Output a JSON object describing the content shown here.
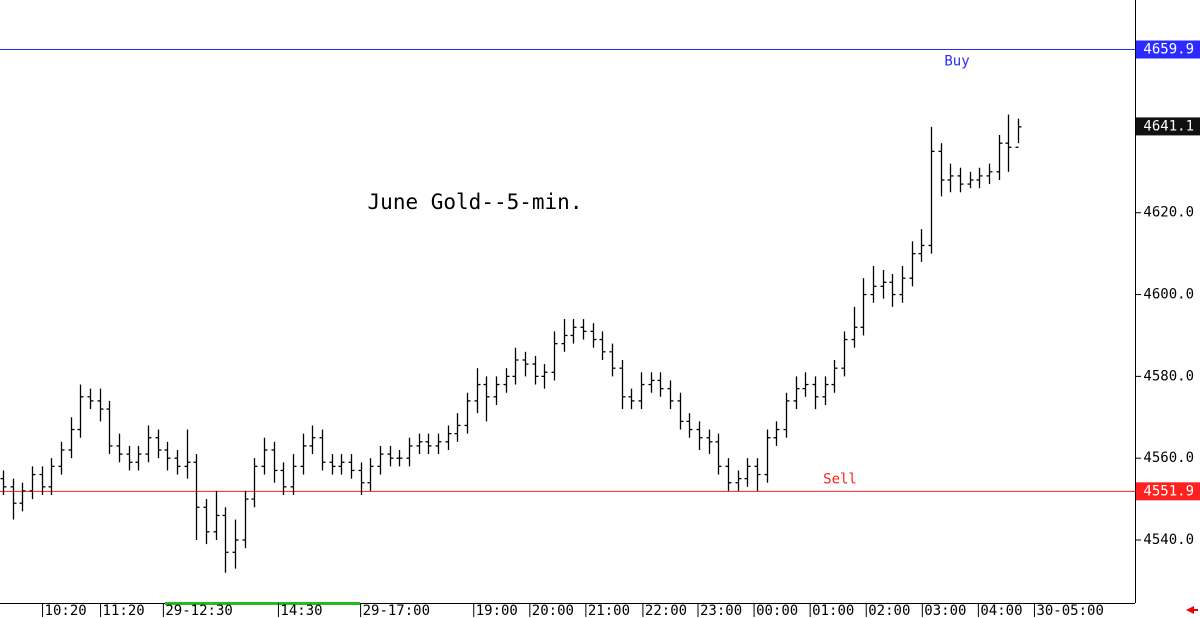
{
  "chart_data": {
    "type": "ohlc",
    "title": "June Gold--5-min.",
    "color": "#000000",
    "open": [
      4555,
      4553,
      4549,
      4552,
      4556,
      4553,
      4558,
      4562,
      4567,
      4575,
      4574,
      4572,
      4563,
      4561,
      4559,
      4561,
      4565,
      4562,
      4560,
      4558,
      4559,
      4548,
      4542,
      4546,
      4537,
      4540,
      4550,
      4558,
      4562,
      4557,
      4553,
      4558,
      4563,
      4565,
      4559,
      4558,
      4559,
      4557,
      4554,
      4558,
      4561,
      4560,
      4560,
      4563,
      4564,
      4563,
      4564,
      4566,
      4568,
      4574,
      4578,
      4575,
      4578,
      4580,
      4584,
      4583,
      4580,
      4581,
      4588,
      4590,
      4592,
      4591,
      4589,
      4586,
      4582,
      4575,
      4574,
      4578,
      4579,
      4577,
      4574,
      4569,
      4567,
      4565,
      4564,
      4558,
      4554,
      4555,
      4558,
      4556,
      4565,
      4567,
      4574,
      4577,
      4578,
      4575,
      4578,
      4582,
      4589,
      4592,
      4600,
      4602,
      4603,
      4600,
      4604,
      4610,
      4612,
      4635,
      4628,
      4629,
      4627,
      4628,
      4629,
      4630,
      4637,
      4636
    ],
    "high": [
      4557,
      4555,
      4554,
      4558,
      4558,
      4560,
      4564,
      4570,
      4578,
      4577,
      4577,
      4574,
      4566,
      4563,
      4563,
      4568,
      4567,
      4564,
      4562,
      4567,
      4561,
      4550,
      4552,
      4548,
      4545,
      4552,
      4560,
      4565,
      4564,
      4559,
      4561,
      4566,
      4568,
      4567,
      4561,
      4561,
      4561,
      4559,
      4560,
      4563,
      4563,
      4562,
      4565,
      4566,
      4566,
      4566,
      4568,
      4571,
      4576,
      4582,
      4580,
      4580,
      4582,
      4587,
      4586,
      4585,
      4583,
      4591,
      4594,
      4594,
      4594,
      4593,
      4591,
      4588,
      4584,
      4577,
      4581,
      4581,
      4581,
      4579,
      4576,
      4571,
      4569,
      4567,
      4566,
      4560,
      4557,
      4560,
      4560,
      4567,
      4569,
      4576,
      4580,
      4581,
      4580,
      4580,
      4584,
      4591,
      4597,
      4604,
      4607,
      4606,
      4605,
      4607,
      4613,
      4616,
      4641,
      4637,
      4632,
      4631,
      4630,
      4631,
      4632,
      4639,
      4644,
      4643
    ],
    "low": [
      4551,
      4545,
      4547,
      4550,
      4551,
      4551,
      4556,
      4560,
      4565,
      4572,
      4569,
      4561,
      4559,
      4557,
      4557,
      4559,
      4560,
      4557,
      4556,
      4555,
      4540,
      4539,
      4540,
      4532,
      4533,
      4538,
      4548,
      4556,
      4554,
      4551,
      4551,
      4556,
      4561,
      4557,
      4556,
      4556,
      4555,
      4551,
      4552,
      4556,
      4558,
      4558,
      4558,
      4561,
      4561,
      4561,
      4562,
      4564,
      4566,
      4571,
      4569,
      4573,
      4576,
      4578,
      4580,
      4578,
      4577,
      4579,
      4586,
      4588,
      4589,
      4587,
      4584,
      4580,
      4572,
      4572,
      4572,
      4576,
      4575,
      4572,
      4567,
      4565,
      4562,
      4561,
      4556,
      4552,
      4552,
      4553,
      4552,
      4554,
      4563,
      4565,
      4572,
      4575,
      4572,
      4573,
      4576,
      4580,
      4587,
      4590,
      4598,
      4599,
      4597,
      4598,
      4602,
      4608,
      4610,
      4624,
      4625,
      4625,
      4626,
      4626,
      4627,
      4628,
      4630,
      4637
    ],
    "close": [
      4553,
      4549,
      4552,
      4556,
      4553,
      4558,
      4562,
      4567,
      4575,
      4574,
      4572,
      4563,
      4561,
      4559,
      4561,
      4565,
      4562,
      4560,
      4558,
      4559,
      4548,
      4542,
      4546,
      4537,
      4540,
      4550,
      4558,
      4562,
      4557,
      4553,
      4558,
      4563,
      4565,
      4559,
      4558,
      4559,
      4557,
      4554,
      4558,
      4561,
      4560,
      4560,
      4563,
      4564,
      4563,
      4564,
      4566,
      4568,
      4574,
      4578,
      4575,
      4578,
      4580,
      4584,
      4583,
      4580,
      4581,
      4588,
      4590,
      4592,
      4591,
      4589,
      4586,
      4582,
      4575,
      4574,
      4578,
      4579,
      4577,
      4574,
      4569,
      4567,
      4565,
      4564,
      4558,
      4554,
      4555,
      4558,
      4556,
      4565,
      4567,
      4574,
      4577,
      4578,
      4575,
      4578,
      4582,
      4589,
      4592,
      4600,
      4602,
      4603,
      4600,
      4604,
      4610,
      4612,
      4635,
      4628,
      4629,
      4627,
      4628,
      4629,
      4630,
      4637,
      4636,
      4641
    ],
    "xlim": [
      -0.3,
      117.1
    ],
    "xticks": [
      {
        "value": 4.1,
        "label": "10:20"
      },
      {
        "value": 10.1,
        "label": "11:20"
      },
      {
        "value": 16.6,
        "label": "29-12:30"
      },
      {
        "value": 28.5,
        "label": "14:30"
      },
      {
        "value": 37.0,
        "label": "29-17:00"
      },
      {
        "value": 48.7,
        "label": "19:00"
      },
      {
        "value": 54.5,
        "label": "20:00"
      },
      {
        "value": 60.3,
        "label": "21:00"
      },
      {
        "value": 66.2,
        "label": "22:00"
      },
      {
        "value": 71.9,
        "label": "23:00"
      },
      {
        "value": 77.7,
        "label": "00:00"
      },
      {
        "value": 83.5,
        "label": "01:00"
      },
      {
        "value": 89.3,
        "label": "02:00"
      },
      {
        "value": 95.1,
        "label": "03:00"
      },
      {
        "value": 100.9,
        "label": "04:00"
      },
      {
        "value": 106.7,
        "label": "30-05:00"
      }
    ],
    "ylim": [
      4524.6,
      4672
    ],
    "yticks": [
      {
        "value": 4540,
        "label": "4540.0"
      },
      {
        "value": 4560,
        "label": "4560.0"
      },
      {
        "value": 4580,
        "label": "4580.0"
      },
      {
        "value": 4600,
        "label": "4600.0"
      },
      {
        "value": 4620,
        "label": "4620.0"
      }
    ],
    "levels": [
      {
        "name": "Buy",
        "value": 4659.9,
        "color": "#2b2bff"
      },
      {
        "name": "Sell",
        "value": 4551.9,
        "color": "#ff2020"
      }
    ],
    "last_price": 4641.1,
    "grid": false
  }
}
